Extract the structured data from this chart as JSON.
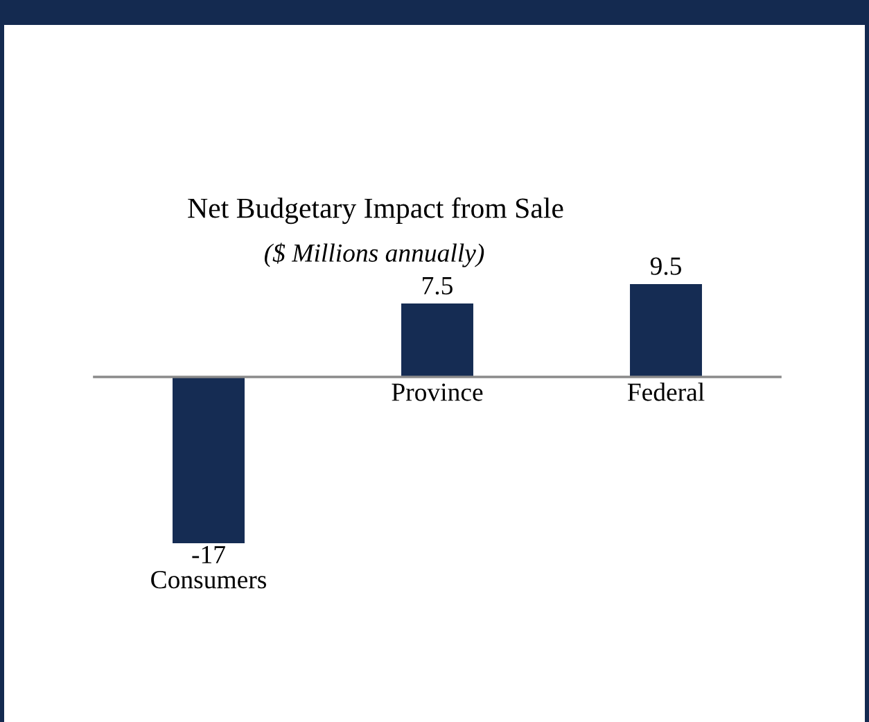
{
  "chart_data": {
    "type": "bar",
    "title": "Net Budgetary Impact from Sale",
    "subtitle": "($ Millions annually)",
    "categories": [
      "Consumers",
      "Province",
      "Federal"
    ],
    "values": [
      -17,
      7.5,
      9.5
    ],
    "color": "#152c53",
    "data_labels": true
  }
}
